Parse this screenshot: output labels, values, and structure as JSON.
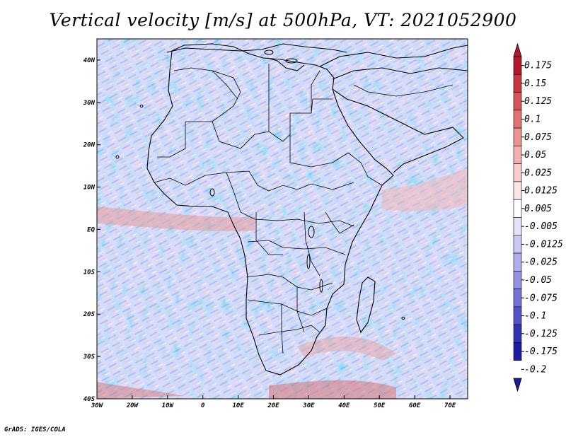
{
  "title": "Vertical velocity [m/s] at 500hPa, VT: 2021052900",
  "credit": "GrADS: IGES/COLA",
  "map": {
    "lon_range": [
      -30,
      75
    ],
    "lat_range": [
      -40,
      45
    ],
    "lon_ticks": [
      {
        "value": -30,
        "label": "30W"
      },
      {
        "value": -20,
        "label": "20W"
      },
      {
        "value": -10,
        "label": "10W"
      },
      {
        "value": 0,
        "label": "0"
      },
      {
        "value": 10,
        "label": "10E"
      },
      {
        "value": 20,
        "label": "20E"
      },
      {
        "value": 30,
        "label": "30E"
      },
      {
        "value": 40,
        "label": "40E"
      },
      {
        "value": 50,
        "label": "50E"
      },
      {
        "value": 60,
        "label": "60E"
      },
      {
        "value": 70,
        "label": "70E"
      }
    ],
    "lat_ticks": [
      {
        "value": 40,
        "label": "40N"
      },
      {
        "value": 30,
        "label": "30N"
      },
      {
        "value": 20,
        "label": "20N"
      },
      {
        "value": 10,
        "label": "10N"
      },
      {
        "value": 0,
        "label": "EQ"
      },
      {
        "value": -10,
        "label": "10S"
      },
      {
        "value": -20,
        "label": "20S"
      },
      {
        "value": -30,
        "label": "30S"
      },
      {
        "value": -40,
        "label": "40S"
      }
    ]
  },
  "colorbar": {
    "levels": [
      {
        "label": "0.175",
        "color": "#b2182b"
      },
      {
        "label": "0.15",
        "color": "#c7373f"
      },
      {
        "label": "0.125",
        "color": "#d65358"
      },
      {
        "label": "0.1",
        "color": "#e07274"
      },
      {
        "label": "0.075",
        "color": "#eb9293"
      },
      {
        "label": "0.05",
        "color": "#f3b0b0"
      },
      {
        "label": "0.025",
        "color": "#f8cdcc"
      },
      {
        "label": "0.0125",
        "color": "#fce6e5"
      },
      {
        "label": "0.005",
        "color": "#ffffff"
      },
      {
        "label": "-0.005",
        "color": "#ffffff"
      },
      {
        "label": "-0.0125",
        "color": "#e3e3fa"
      },
      {
        "label": "-0.025",
        "color": "#c9c9f3"
      },
      {
        "label": "-0.05",
        "color": "#aeaeeb"
      },
      {
        "label": "-0.075",
        "color": "#9393e2"
      },
      {
        "label": "-0.1",
        "color": "#7474d6"
      },
      {
        "label": "-0.125",
        "color": "#5454c8"
      },
      {
        "label": "-0.175",
        "color": "#3232b4"
      },
      {
        "label": "-0.2",
        "color": "#1c1ca0"
      }
    ],
    "top_arrow_color": "#b2182b",
    "bottom_arrow_color": "#1c1ca0"
  }
}
